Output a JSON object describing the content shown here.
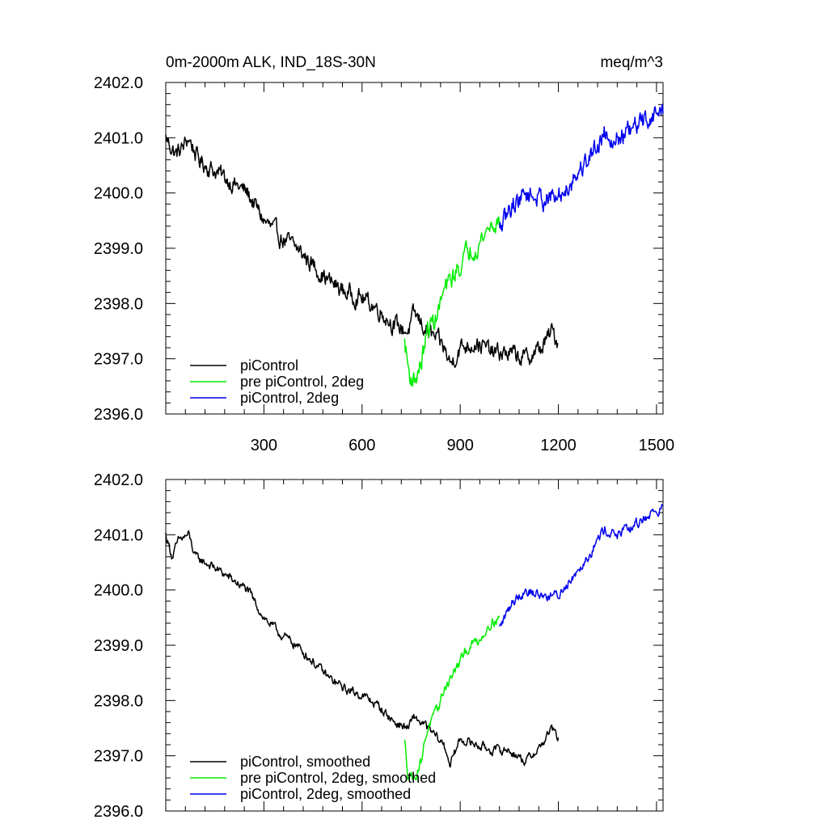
{
  "chart_data": [
    {
      "type": "line",
      "title": "0m-2000m ALK, IND_18S-30N",
      "units": "meq/m^3",
      "ylim": [
        2396.0,
        2402.0
      ],
      "xlim": [
        0,
        1520
      ],
      "yticks": [
        "2396.0",
        "2397.0",
        "2398.0",
        "2399.0",
        "2400.0",
        "2401.0",
        "2402.0"
      ],
      "xticks": [
        "300",
        "600",
        "900",
        "1200",
        "1500"
      ],
      "legend": [
        "piControl",
        "pre piControl, 2deg",
        "piControl, 2deg"
      ],
      "legend_position": "bottom-left",
      "series": [
        {
          "name": "piControl",
          "color": "#000000",
          "noise": 0.26,
          "x_range": [
            0,
            1200
          ],
          "points": [
            [
              0,
              2401.0
            ],
            [
              30,
              2400.7
            ],
            [
              50,
              2400.8
            ],
            [
              70,
              2401.0
            ],
            [
              100,
              2400.6
            ],
            [
              150,
              2400.4
            ],
            [
              200,
              2400.2
            ],
            [
              250,
              2400.0
            ],
            [
              300,
              2399.5
            ],
            [
              350,
              2399.2
            ],
            [
              400,
              2399.0
            ],
            [
              450,
              2398.7
            ],
            [
              500,
              2398.4
            ],
            [
              550,
              2398.2
            ],
            [
              600,
              2398.1
            ],
            [
              650,
              2397.9
            ],
            [
              700,
              2397.6
            ],
            [
              740,
              2397.5
            ],
            [
              760,
              2397.8
            ],
            [
              800,
              2397.5
            ],
            [
              850,
              2397.2
            ],
            [
              870,
              2396.9
            ],
            [
              900,
              2397.2
            ],
            [
              950,
              2397.3
            ],
            [
              1000,
              2397.1
            ],
            [
              1050,
              2397.1
            ],
            [
              1100,
              2397.0
            ],
            [
              1150,
              2397.2
            ],
            [
              1180,
              2397.5
            ],
            [
              1200,
              2397.3
            ]
          ]
        },
        {
          "name": "pre piControl, 2deg",
          "color": "#00ee00",
          "noise": 0.3,
          "x_range": [
            730,
            1020
          ],
          "points": [
            [
              730,
              2397.3
            ],
            [
              745,
              2396.7
            ],
            [
              760,
              2396.6
            ],
            [
              780,
              2396.9
            ],
            [
              800,
              2397.5
            ],
            [
              830,
              2397.8
            ],
            [
              850,
              2398.2
            ],
            [
              880,
              2398.5
            ],
            [
              900,
              2398.7
            ],
            [
              930,
              2399.0
            ],
            [
              960,
              2399.1
            ],
            [
              990,
              2399.4
            ],
            [
              1020,
              2399.5
            ]
          ]
        },
        {
          "name": "piControl, 2deg",
          "color": "#0000ee",
          "noise": 0.3,
          "x_range": [
            1020,
            1520
          ],
          "points": [
            [
              1020,
              2399.3
            ],
            [
              1060,
              2399.8
            ],
            [
              1100,
              2400.0
            ],
            [
              1150,
              2399.9
            ],
            [
              1200,
              2399.9
            ],
            [
              1250,
              2400.3
            ],
            [
              1300,
              2400.7
            ],
            [
              1340,
              2401.1
            ],
            [
              1380,
              2401.0
            ],
            [
              1420,
              2401.1
            ],
            [
              1460,
              2401.3
            ],
            [
              1490,
              2401.4
            ],
            [
              1520,
              2401.5
            ]
          ]
        }
      ]
    },
    {
      "type": "line",
      "ylim": [
        2396.0,
        2402.0
      ],
      "xlim": [
        0,
        1520
      ],
      "yticks": [
        "2396.0",
        "2397.0",
        "2398.0",
        "2399.0",
        "2400.0",
        "2401.0",
        "2402.0"
      ],
      "legend": [
        "piControl, smoothed",
        "pre piControl, 2deg, smoothed",
        "piControl, 2deg, smoothed"
      ],
      "legend_position": "bottom-left",
      "series": [
        {
          "name": "piControl, smoothed",
          "color": "#000000",
          "noise": 0.13,
          "x_range": [
            0,
            1200
          ],
          "points": [
            [
              0,
              2401.0
            ],
            [
              20,
              2400.6
            ],
            [
              40,
              2400.9
            ],
            [
              70,
              2401.0
            ],
            [
              90,
              2400.6
            ],
            [
              150,
              2400.4
            ],
            [
              200,
              2400.2
            ],
            [
              250,
              2400.0
            ],
            [
              300,
              2399.5
            ],
            [
              350,
              2399.2
            ],
            [
              400,
              2399.0
            ],
            [
              450,
              2398.7
            ],
            [
              500,
              2398.4
            ],
            [
              550,
              2398.2
            ],
            [
              600,
              2398.1
            ],
            [
              650,
              2397.9
            ],
            [
              700,
              2397.6
            ],
            [
              740,
              2397.5
            ],
            [
              760,
              2397.7
            ],
            [
              800,
              2397.5
            ],
            [
              850,
              2397.2
            ],
            [
              870,
              2396.85
            ],
            [
              900,
              2397.3
            ],
            [
              950,
              2397.2
            ],
            [
              1000,
              2397.1
            ],
            [
              1050,
              2397.1
            ],
            [
              1100,
              2396.9
            ],
            [
              1150,
              2397.2
            ],
            [
              1180,
              2397.5
            ],
            [
              1200,
              2397.3
            ]
          ]
        },
        {
          "name": "pre piControl, 2deg, smoothed",
          "color": "#00ee00",
          "noise": 0.15,
          "x_range": [
            730,
            1020
          ],
          "points": [
            [
              730,
              2397.25
            ],
            [
              740,
              2396.7
            ],
            [
              760,
              2396.6
            ],
            [
              780,
              2396.9
            ],
            [
              800,
              2397.5
            ],
            [
              830,
              2397.8
            ],
            [
              850,
              2398.2
            ],
            [
              880,
              2398.5
            ],
            [
              900,
              2398.7
            ],
            [
              930,
              2399.0
            ],
            [
              960,
              2399.1
            ],
            [
              990,
              2399.4
            ],
            [
              1020,
              2399.5
            ]
          ]
        },
        {
          "name": "piControl, 2deg, smoothed",
          "color": "#0000ee",
          "noise": 0.15,
          "x_range": [
            1020,
            1520
          ],
          "points": [
            [
              1020,
              2399.3
            ],
            [
              1060,
              2399.8
            ],
            [
              1100,
              2400.0
            ],
            [
              1150,
              2399.9
            ],
            [
              1200,
              2399.9
            ],
            [
              1250,
              2400.3
            ],
            [
              1300,
              2400.7
            ],
            [
              1340,
              2401.1
            ],
            [
              1380,
              2401.0
            ],
            [
              1420,
              2401.1
            ],
            [
              1460,
              2401.3
            ],
            [
              1490,
              2401.4
            ],
            [
              1520,
              2401.5
            ]
          ]
        }
      ]
    }
  ]
}
